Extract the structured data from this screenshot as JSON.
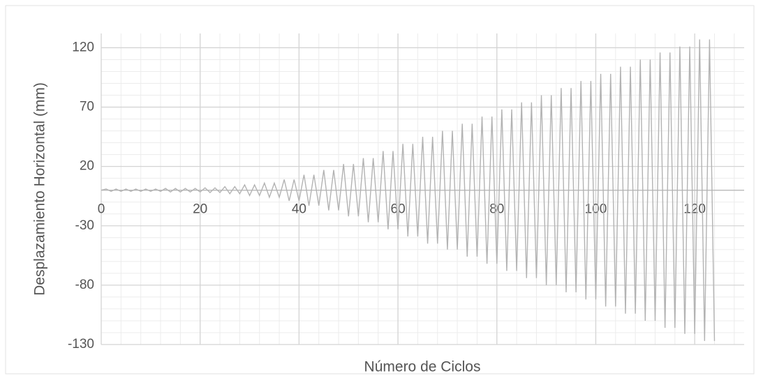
{
  "chart_data": {
    "type": "line",
    "x_label": "Número de Ciclos",
    "y_label": "Desplazamiento Horizontal (mm)",
    "x": [
      0,
      1,
      2,
      3,
      4,
      5,
      6,
      7,
      8,
      9,
      10,
      11,
      12,
      13,
      14,
      15,
      16,
      17,
      18,
      19,
      20,
      21,
      22,
      23,
      24,
      25,
      26,
      27,
      28,
      29,
      30,
      31,
      32,
      33,
      34,
      35,
      36,
      37,
      38,
      39,
      40,
      41,
      42,
      43,
      44,
      45,
      46,
      47,
      48,
      49,
      50,
      51,
      52,
      53,
      54,
      55,
      56,
      57,
      58,
      59,
      60,
      61,
      62,
      63,
      64,
      65,
      66,
      67,
      68,
      69,
      70,
      71,
      72,
      73,
      74,
      75,
      76,
      77,
      78,
      79,
      80,
      81,
      82,
      83,
      84,
      85,
      86,
      87,
      88,
      89,
      90,
      91,
      92,
      93,
      94,
      95,
      96,
      97,
      98,
      99,
      100,
      101,
      102,
      103,
      104,
      105,
      106,
      107,
      108,
      109,
      110,
      111,
      112,
      113,
      114,
      115,
      116,
      117,
      118,
      119,
      120,
      121,
      122,
      123,
      124
    ],
    "series": [
      {
        "color": "#b3b3b3",
        "values": [
          0,
          1,
          -1,
          1,
          -1,
          1,
          -1,
          1,
          -1,
          1,
          -1,
          1,
          -1,
          1.5,
          -1.5,
          1.5,
          -1.5,
          1.5,
          -1.5,
          1.5,
          -1.5,
          2,
          -2,
          2,
          -2,
          3,
          -3,
          3,
          -3,
          4.5,
          -4.5,
          4.5,
          -4.5,
          6,
          -6,
          6,
          -6,
          9,
          -9,
          9,
          -9,
          13,
          -13,
          13,
          -13,
          17,
          -17,
          17,
          -17,
          22,
          -22,
          22,
          -22,
          27,
          -27,
          27,
          -27,
          33,
          -33,
          33,
          -33,
          39,
          -39,
          39,
          -39,
          45,
          -45,
          45,
          -45,
          50,
          -50,
          50,
          -50,
          56,
          -56,
          56,
          -56,
          62,
          -62,
          62,
          -62,
          68,
          -68,
          68,
          -68,
          74,
          -74,
          74,
          -74,
          80,
          -80,
          80,
          -80,
          86,
          -86,
          86,
          -86,
          92,
          -92,
          92,
          -92,
          98,
          -98,
          98,
          -98,
          104,
          -104,
          104,
          -104,
          110,
          -110,
          110,
          -110,
          116,
          -116,
          116,
          -116,
          121,
          -121,
          121,
          -121,
          127,
          -127,
          127,
          -127
        ]
      }
    ],
    "xlim": [
      0,
      130
    ],
    "xticks": [
      0,
      20,
      40,
      60,
      80,
      100,
      120
    ],
    "ylim": [
      -130,
      132
    ],
    "yticks": [
      -130,
      -80,
      -30,
      20,
      70,
      120
    ],
    "grid": true
  }
}
